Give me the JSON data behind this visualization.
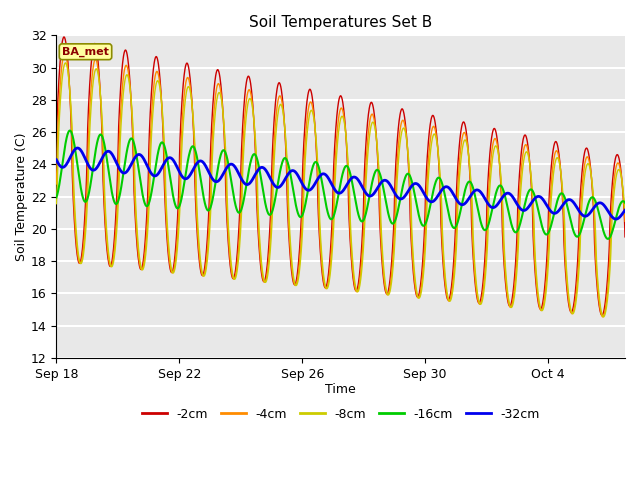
{
  "title": "Soil Temperatures Set B",
  "xlabel": "Time",
  "ylabel": "Soil Temperature (C)",
  "ylim": [
    12,
    32
  ],
  "annotation": "BA_met",
  "annotation_color": "#8B0000",
  "annotation_bg": "#FFFFA0",
  "annotation_border": "#8B8B00",
  "fig_bg": "#FFFFFF",
  "plot_bg_color": "#E8E8E8",
  "grid_color": "#FFFFFF",
  "series": [
    {
      "label": "-2cm",
      "color": "#CC0000",
      "lw": 1.0
    },
    {
      "label": "-4cm",
      "color": "#FF8C00",
      "lw": 1.0
    },
    {
      "label": "-8cm",
      "color": "#CCCC00",
      "lw": 1.0
    },
    {
      "label": "-16cm",
      "color": "#00CC00",
      "lw": 1.5
    },
    {
      "label": "-32cm",
      "color": "#0000EE",
      "lw": 2.0
    }
  ],
  "xtick_labels": [
    "Sep 18",
    "Sep 22",
    "Sep 26",
    "Sep 30",
    "Oct 4"
  ],
  "xtick_positions": [
    0,
    4,
    8,
    12,
    16
  ],
  "ytick_labels": [
    "12",
    "14",
    "16",
    "18",
    "20",
    "22",
    "24",
    "26",
    "28",
    "30",
    "32"
  ],
  "ytick_positions": [
    12,
    14,
    16,
    18,
    20,
    22,
    24,
    26,
    28,
    30,
    32
  ],
  "total_days": 18.5,
  "n_points": 2000
}
